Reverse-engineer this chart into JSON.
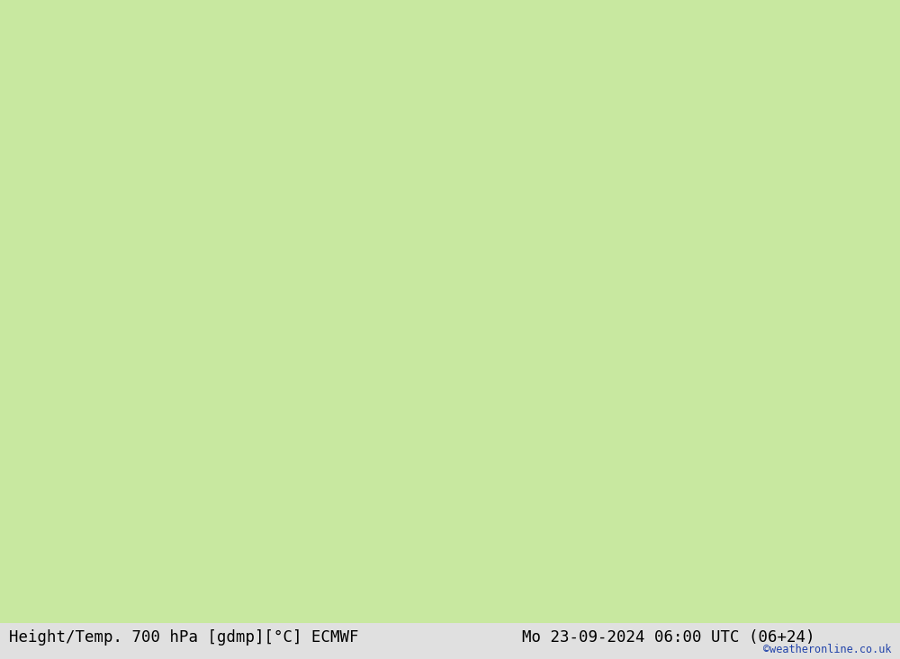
{
  "title_left": "Height/Temp. 700 hPa [gdmp][°C] ECMWF",
  "title_right": "Mo 23-09-2024 06:00 UTC (06+24)",
  "watermark": "©weatheronline.co.uk",
  "land_color": "#c8e8a0",
  "sea_color": "#e8e8e8",
  "border_line_color": "#aaaaaa",
  "coastline_color": "#888888",
  "bottom_bar_color": "#e0e0e0",
  "bg_color": "#e0e0e0",
  "fig_width": 10.0,
  "fig_height": 7.33,
  "title_fontsize": 12.5,
  "watermark_color": "#2244aa",
  "black_contour_color": "#000000",
  "red_contour_color": "#dd0000",
  "magenta_contour_color": "#cc00aa",
  "orange_contour_color": "#dd8800",
  "map_extent": [
    -45,
    50,
    25,
    75
  ],
  "contour_lw_thick": 2.2,
  "contour_lw_thin": 1.3,
  "label_fontsize": 8.5
}
